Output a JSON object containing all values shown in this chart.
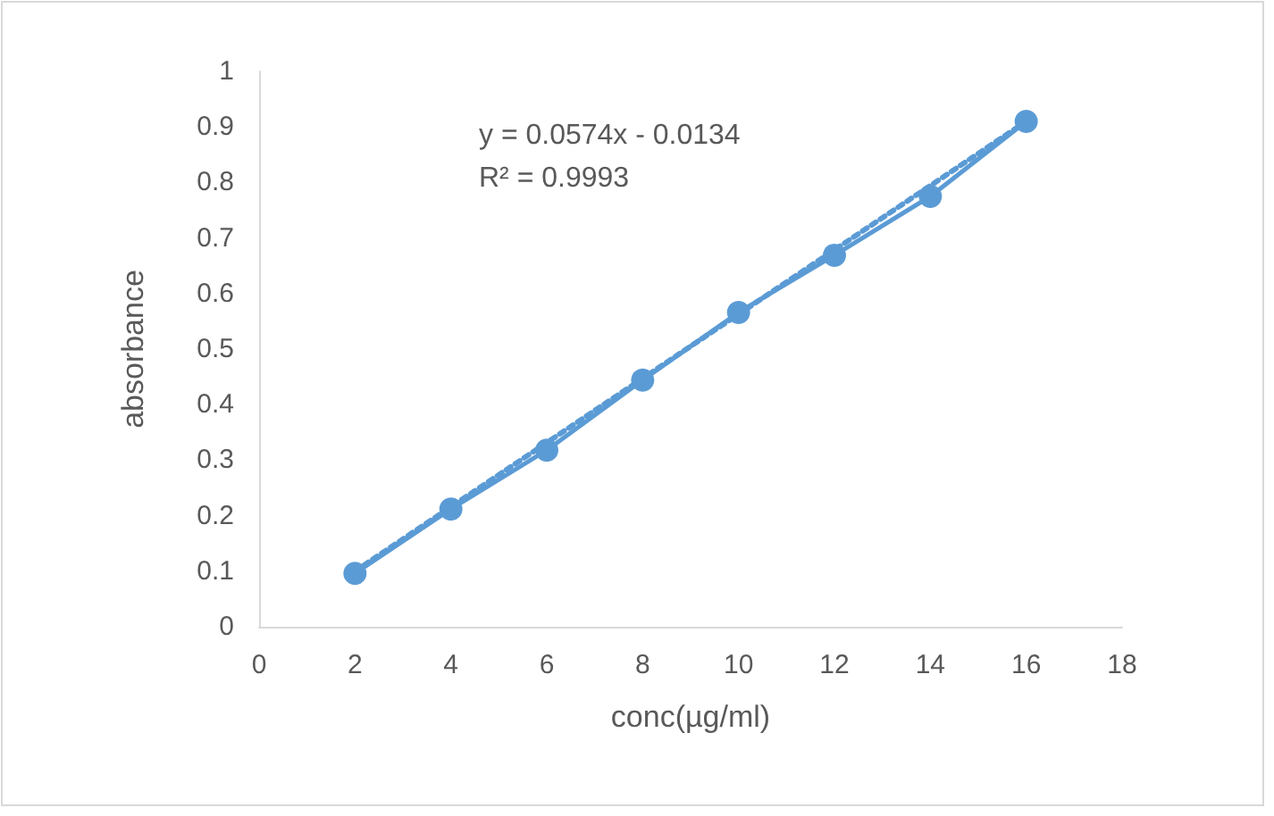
{
  "chart_data": {
    "type": "line",
    "xlabel": "conc(µg/ml)",
    "ylabel": "absorbance",
    "annotations": [
      "y = 0.0574x - 0.0134",
      "R² = 0.9993"
    ],
    "series": [
      {
        "color": "#5b9bd5",
        "x": [
          2,
          4,
          6,
          8,
          10,
          12,
          14,
          16
        ],
        "values": [
          0.096,
          0.212,
          0.318,
          0.444,
          0.566,
          0.669,
          0.775,
          0.91
        ],
        "marker": "circle",
        "line_style": "solid"
      },
      {
        "color": "#5b9bd5",
        "x": [
          2,
          16
        ],
        "values": [
          0.1,
          0.91
        ],
        "marker": "none",
        "line_style": "dotted"
      }
    ],
    "xlim": [
      0,
      18
    ],
    "xticks": [
      0,
      2,
      4,
      6,
      8,
      10,
      12,
      14,
      16,
      18
    ],
    "ylim": [
      0,
      1
    ],
    "yticks": [
      0,
      0.1,
      0.2,
      0.3,
      0.4,
      0.5,
      0.6,
      0.7,
      0.8,
      0.9,
      1
    ],
    "grid": false
  }
}
